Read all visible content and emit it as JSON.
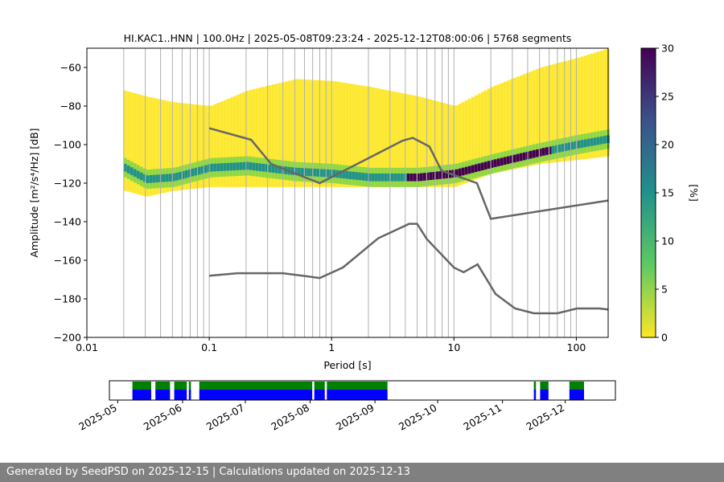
{
  "chart_data": {
    "type": "heatmap",
    "title": "HI.KAC1..HNN | 100.0Hz | 2025-05-08T09:23:24 - 2025-12-12T08:00:06 | 5768 segments",
    "xlabel": "Period [s]",
    "ylabel": "Amplitude [m²/s⁴/Hz] [dB]",
    "xscale": "log",
    "xlim": [
      0.01,
      182
    ],
    "ylim": [
      -200,
      -50
    ],
    "xticks": [
      {
        "v": 0.01,
        "l": "0.01"
      },
      {
        "v": 0.1,
        "l": "0.1"
      },
      {
        "v": 1,
        "l": "1"
      },
      {
        "v": 10,
        "l": "10"
      },
      {
        "v": 100,
        "l": "100"
      }
    ],
    "yticks": [
      -200,
      -180,
      -160,
      -140,
      -120,
      -100,
      -80,
      -60
    ],
    "grid": "vertical at period ticks",
    "colorbar": {
      "label": "[%]",
      "range": [
        0,
        30
      ],
      "ticks": [
        0,
        5,
        10,
        15,
        20,
        25,
        30
      ],
      "colormap": "viridis_r"
    },
    "psd_distribution": [
      {
        "period": 0.02,
        "min": -124,
        "max": -72,
        "mode": -112
      },
      {
        "period": 0.03,
        "min": -127,
        "max": -75,
        "mode": -118
      },
      {
        "period": 0.05,
        "min": -124,
        "max": -78,
        "mode": -117
      },
      {
        "period": 0.1,
        "min": -122,
        "max": -80,
        "mode": -112
      },
      {
        "period": 0.2,
        "min": -122,
        "max": -72,
        "mode": -111
      },
      {
        "period": 0.5,
        "min": -122,
        "max": -66,
        "mode": -114
      },
      {
        "period": 1,
        "min": -122,
        "max": -67,
        "mode": -115
      },
      {
        "period": 2,
        "min": -122,
        "max": -70,
        "mode": -117
      },
      {
        "period": 5,
        "min": -122,
        "max": -75,
        "mode": -117
      },
      {
        "period": 10,
        "min": -122,
        "max": -80,
        "mode": -115
      },
      {
        "period": 20,
        "min": -115,
        "max": -70,
        "mode": -110
      },
      {
        "period": 50,
        "min": -110,
        "max": -60,
        "mode": -104
      },
      {
        "period": 100,
        "min": -108,
        "max": -55,
        "mode": -100
      },
      {
        "period": 182,
        "min": -106,
        "max": -50,
        "mode": -97
      }
    ],
    "noise_models": [
      {
        "points": [
          [
            0.1,
            -91.5
          ],
          [
            0.22,
            -97.5
          ],
          [
            0.32,
            -110
          ],
          [
            0.8,
            -120
          ],
          [
            3.8,
            -98
          ],
          [
            4.6,
            -96.5
          ],
          [
            6.3,
            -101
          ],
          [
            7.9,
            -113.5
          ],
          [
            15.4,
            -120
          ],
          [
            20,
            -138.5
          ],
          [
            182,
            -129
          ]
        ]
      },
      {
        "points": [
          [
            0.1,
            -168
          ],
          [
            0.17,
            -166.7
          ],
          [
            0.4,
            -166.7
          ],
          [
            0.8,
            -169.2
          ],
          [
            1.24,
            -163.7
          ],
          [
            2.4,
            -148.6
          ],
          [
            4.3,
            -141.1
          ],
          [
            5,
            -141.1
          ],
          [
            6,
            -149
          ],
          [
            10,
            -163.8
          ],
          [
            12,
            -166.2
          ],
          [
            15.6,
            -162.1
          ],
          [
            21.9,
            -177.5
          ],
          [
            31.6,
            -185
          ],
          [
            45,
            -187.5
          ],
          [
            70,
            -187.5
          ],
          [
            101,
            -185
          ],
          [
            154,
            -185
          ],
          [
            182,
            -185.5
          ]
        ]
      }
    ],
    "timeline": {
      "xlim": [
        "2025-04-27",
        "2025-12-25"
      ],
      "tick_labels": [
        "2025-05",
        "2025-06",
        "2025-07",
        "2025-08",
        "2025-09",
        "2025-10",
        "2025-11",
        "2025-12"
      ],
      "tick_dates": [
        "2025-05-01",
        "2025-06-01",
        "2025-07-01",
        "2025-08-01",
        "2025-09-01",
        "2025-10-01",
        "2025-11-01",
        "2025-12-01"
      ],
      "coverage": [
        [
          "2025-05-08",
          "2025-05-17"
        ],
        [
          "2025-05-19",
          "2025-05-26"
        ],
        [
          "2025-05-28",
          "2025-06-03"
        ],
        [
          "2025-06-04",
          "2025-06-05"
        ],
        [
          "2025-06-09",
          "2025-08-02"
        ],
        [
          "2025-08-03",
          "2025-08-08"
        ],
        [
          "2025-08-09",
          "2025-09-07"
        ],
        [
          "2025-11-16",
          "2025-11-17"
        ],
        [
          "2025-11-19",
          "2025-11-23"
        ],
        [
          "2025-12-03",
          "2025-12-10"
        ]
      ],
      "colors": {
        "top": "#008000",
        "bottom": "#0000ff"
      }
    },
    "colors": {
      "noise_model": "#666666",
      "grid": "#b0b0b0"
    }
  },
  "footer": "Generated by SeedPSD on 2025-12-15 | Calculations updated on 2025-12-13"
}
